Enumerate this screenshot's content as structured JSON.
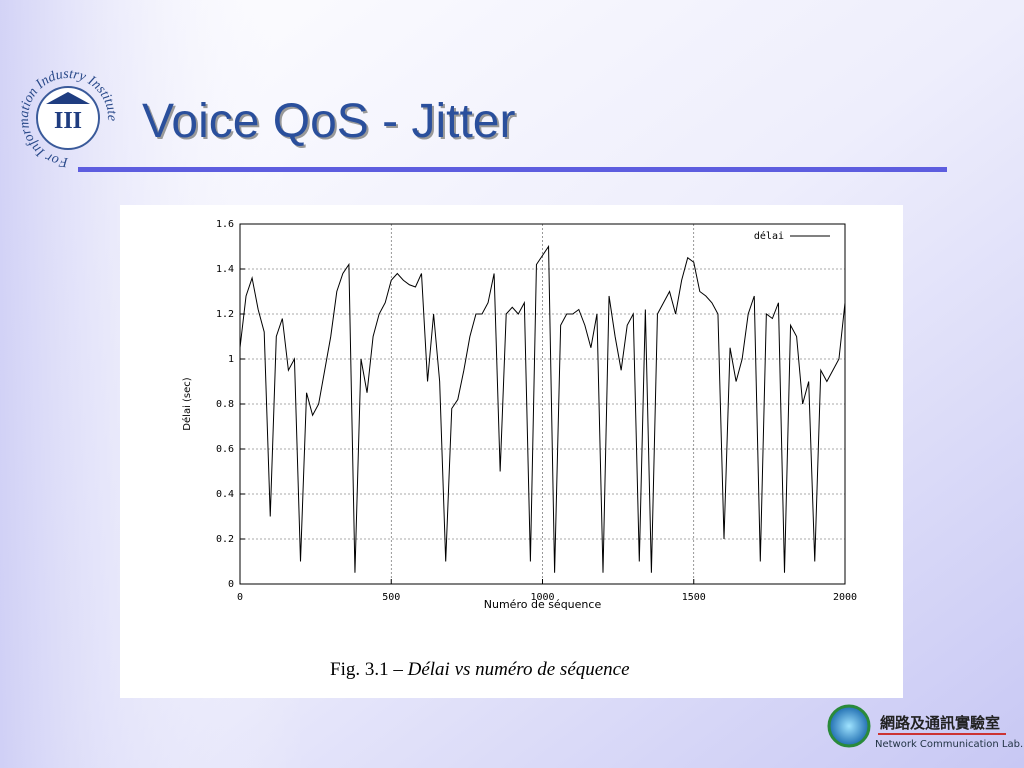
{
  "slide": {
    "title": "Voice QoS - Jitter",
    "logo_ring": "For Information Industry Institute",
    "logo_mark": "III",
    "caption_label": "Fig. 3.1 –",
    "caption_text": "Délai vs numéro de séquence",
    "lab_name": "網路及通訊實驗室",
    "lab_name_en": "Network Communication Lab."
  },
  "chart_data": {
    "type": "line",
    "xlabel": "Numéro de séquence",
    "ylabel": "Délai (sec)",
    "xlim": [
      0,
      2000
    ],
    "ylim": [
      0,
      1.6
    ],
    "xticks": [
      0,
      500,
      1000,
      1500,
      2000
    ],
    "yticks": [
      0,
      0.2,
      0.4,
      0.6,
      0.8,
      1,
      1.2,
      1.4,
      1.6
    ],
    "grid": true,
    "legend": "upper right",
    "x": [
      0,
      20,
      40,
      60,
      80,
      100,
      120,
      140,
      160,
      180,
      200,
      220,
      240,
      260,
      280,
      300,
      320,
      340,
      360,
      380,
      400,
      420,
      440,
      460,
      480,
      500,
      520,
      540,
      560,
      580,
      600,
      620,
      640,
      660,
      680,
      700,
      720,
      740,
      760,
      780,
      800,
      820,
      840,
      860,
      880,
      900,
      920,
      940,
      960,
      980,
      1000,
      1020,
      1040,
      1060,
      1080,
      1100,
      1120,
      1140,
      1160,
      1180,
      1200,
      1220,
      1240,
      1260,
      1280,
      1300,
      1320,
      1340,
      1360,
      1380,
      1400,
      1420,
      1440,
      1460,
      1480,
      1500,
      1520,
      1540,
      1560,
      1580,
      1600,
      1620,
      1640,
      1660,
      1680,
      1700,
      1720,
      1740,
      1760,
      1780,
      1800,
      1820,
      1840,
      1860,
      1880,
      1900,
      1920,
      1940,
      1960,
      1980,
      2000
    ],
    "series": [
      {
        "name": "délai",
        "color": "#000000",
        "values": [
          1.05,
          1.28,
          1.36,
          1.22,
          1.12,
          0.3,
          1.1,
          1.18,
          0.95,
          1.0,
          0.1,
          0.85,
          0.75,
          0.8,
          0.95,
          1.1,
          1.3,
          1.38,
          1.42,
          0.05,
          1.0,
          0.85,
          1.1,
          1.2,
          1.25,
          1.35,
          1.38,
          1.35,
          1.33,
          1.32,
          1.38,
          0.9,
          1.2,
          0.9,
          0.1,
          0.78,
          0.82,
          0.95,
          1.1,
          1.2,
          1.2,
          1.25,
          1.38,
          0.5,
          1.2,
          1.23,
          1.2,
          1.25,
          0.1,
          1.42,
          1.46,
          1.5,
          0.05,
          1.15,
          1.2,
          1.2,
          1.22,
          1.15,
          1.05,
          1.2,
          0.05,
          1.28,
          1.1,
          0.95,
          1.15,
          1.2,
          0.1,
          1.22,
          0.05,
          1.2,
          1.25,
          1.3,
          1.2,
          1.35,
          1.45,
          1.43,
          1.3,
          1.28,
          1.25,
          1.2,
          0.2,
          1.05,
          0.9,
          1.0,
          1.2,
          1.28,
          0.1,
          1.2,
          1.18,
          1.25,
          0.05,
          1.15,
          1.1,
          0.8,
          0.9,
          0.1,
          0.95,
          0.9,
          0.95,
          1.0,
          1.25
        ]
      }
    ]
  }
}
